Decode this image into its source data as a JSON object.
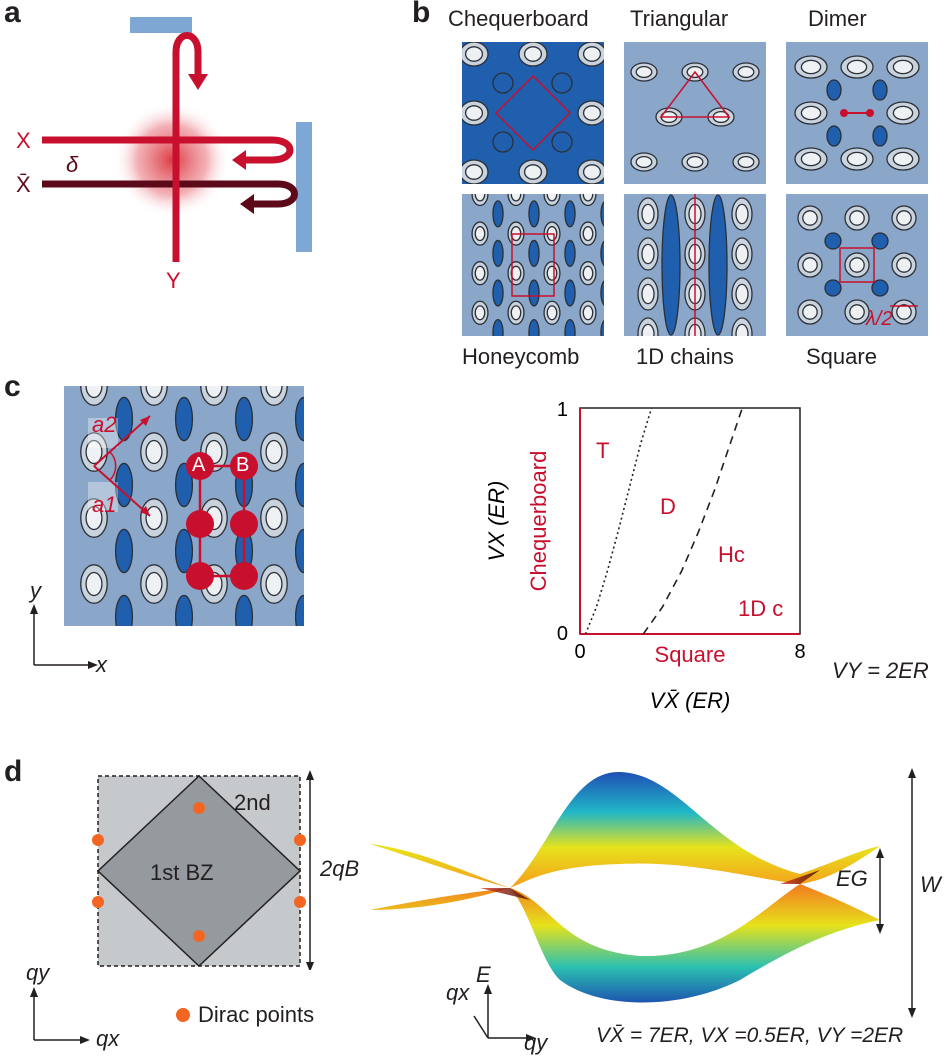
{
  "panels": {
    "a": "a",
    "b": "b",
    "c": "c",
    "d": "d"
  },
  "panel_a": {
    "beam_x": "X",
    "beam_xbar": "X̄",
    "beam_y": "Y",
    "delta": "δ"
  },
  "panel_b": {
    "top_labels": [
      "Chequerboard",
      "Triangular",
      "Dimer"
    ],
    "bottom_labels": [
      "Honeycomb",
      "1D chains",
      "Square"
    ],
    "scale_label": "λ/2"
  },
  "panel_c": {
    "lattice_vector_2": "a2",
    "lattice_vector_1": "a1",
    "site_a": "A",
    "site_b": "B",
    "axis_x": "x",
    "axis_y": "y",
    "vy_label": "VY = 2ER"
  },
  "chart_data": {
    "type": "line",
    "xlabel": "VX̄ (ER)",
    "ylabel": "VX (ER)",
    "x_range": [
      0,
      8
    ],
    "y_range": [
      0,
      1
    ],
    "x_ticks": [
      "0",
      "8"
    ],
    "y_ticks": [
      "0",
      "1"
    ],
    "x_axis_regime_label": "Square",
    "y_axis_regime_label": "Chequerboard",
    "region_labels": [
      "T",
      "D",
      "Hc",
      "1D c"
    ],
    "series": [
      {
        "style": "dotted",
        "x": [
          0.2,
          0.6,
          1.0,
          1.4,
          1.8,
          2.2,
          2.6
        ],
        "y": [
          0.0,
          0.12,
          0.28,
          0.46,
          0.65,
          0.84,
          1.0
        ]
      },
      {
        "style": "dashed",
        "x": [
          2.3,
          3.0,
          3.7,
          4.3,
          4.9,
          5.4,
          5.9
        ],
        "y": [
          0.0,
          0.12,
          0.28,
          0.45,
          0.64,
          0.82,
          1.0
        ]
      }
    ]
  },
  "panel_d": {
    "first_bz": "1st BZ",
    "second_bz": "2nd",
    "width_label": "2qB",
    "dirac_legend": "Dirac points",
    "axis_qx": "qx",
    "axis_qy": "qy",
    "gap_label": "EG",
    "bandwidth_label": "W",
    "energy_axis": "E",
    "params": "VX̄ = 7ER, VX =0.5ER, VY =2ER",
    "dirac_color": "#f26522"
  }
}
